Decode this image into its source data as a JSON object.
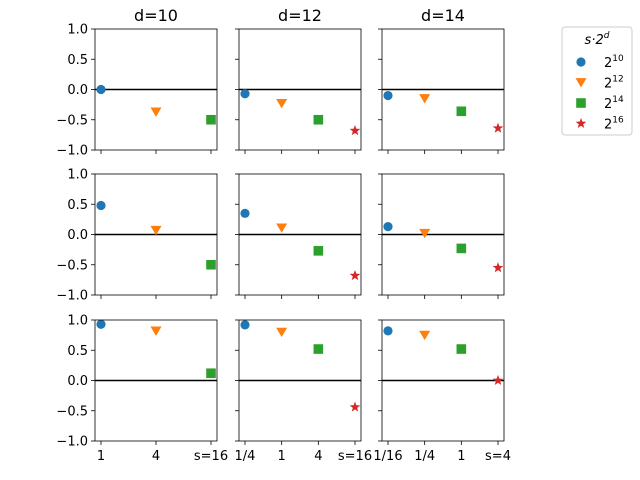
{
  "column_titles": [
    "d=10",
    "d=12",
    "d=14"
  ],
  "legend": {
    "title": "s · 2^d",
    "entries": [
      {
        "label": "2^10",
        "marker": "circle",
        "color": "#1f77b4"
      },
      {
        "label": "2^12",
        "marker": "triangle-down",
        "color": "#ff7f0e"
      },
      {
        "label": "2^14",
        "marker": "square",
        "color": "#2ca02c"
      },
      {
        "label": "2^16",
        "marker": "star",
        "color": "#d62728"
      }
    ],
    "placement": "upper-right outside"
  },
  "chart_data": {
    "type": "scatter",
    "grid": false,
    "ylim": [
      -1.0,
      1.0
    ],
    "yticks": [
      "1.0",
      "0.5",
      "0.0",
      "−0.5",
      "−1.0"
    ],
    "ytick_values": [
      1.0,
      0.5,
      0.0,
      -0.5,
      -1.0
    ],
    "reference_line_y": 0.0,
    "columns": [
      {
        "title": "d=10",
        "x_categories": [
          "1",
          "4",
          "s=16"
        ]
      },
      {
        "title": "d=12",
        "x_categories": [
          "1/4",
          "1",
          "4",
          "s=16"
        ]
      },
      {
        "title": "d=14",
        "x_categories": [
          "1/16",
          "1/4",
          "1",
          "s=4"
        ]
      }
    ],
    "series_names": [
      "2^10",
      "2^12",
      "2^14",
      "2^16"
    ],
    "panels": [
      {
        "row": 0,
        "col": 0,
        "points": [
          {
            "series": 0,
            "x": 0,
            "y": 0.0
          },
          {
            "series": 1,
            "x": 1,
            "y": -0.37
          },
          {
            "series": 2,
            "x": 2,
            "y": -0.5
          }
        ]
      },
      {
        "row": 0,
        "col": 1,
        "points": [
          {
            "series": 0,
            "x": 0,
            "y": -0.07
          },
          {
            "series": 1,
            "x": 1,
            "y": -0.23
          },
          {
            "series": 2,
            "x": 2,
            "y": -0.5
          },
          {
            "series": 3,
            "x": 3,
            "y": -0.68
          }
        ]
      },
      {
        "row": 0,
        "col": 2,
        "points": [
          {
            "series": 0,
            "x": 0,
            "y": -0.1
          },
          {
            "series": 1,
            "x": 1,
            "y": -0.15
          },
          {
            "series": 2,
            "x": 2,
            "y": -0.36
          },
          {
            "series": 3,
            "x": 3,
            "y": -0.64
          }
        ]
      },
      {
        "row": 1,
        "col": 0,
        "points": [
          {
            "series": 0,
            "x": 0,
            "y": 0.48
          },
          {
            "series": 1,
            "x": 1,
            "y": 0.07
          },
          {
            "series": 2,
            "x": 2,
            "y": -0.5
          }
        ]
      },
      {
        "row": 1,
        "col": 1,
        "points": [
          {
            "series": 0,
            "x": 0,
            "y": 0.35
          },
          {
            "series": 1,
            "x": 1,
            "y": 0.11
          },
          {
            "series": 2,
            "x": 2,
            "y": -0.27
          },
          {
            "series": 3,
            "x": 3,
            "y": -0.68
          }
        ]
      },
      {
        "row": 1,
        "col": 2,
        "points": [
          {
            "series": 0,
            "x": 0,
            "y": 0.13
          },
          {
            "series": 1,
            "x": 1,
            "y": 0.02
          },
          {
            "series": 2,
            "x": 2,
            "y": -0.23
          },
          {
            "series": 3,
            "x": 3,
            "y": -0.55
          }
        ]
      },
      {
        "row": 2,
        "col": 0,
        "points": [
          {
            "series": 0,
            "x": 0,
            "y": 0.93
          },
          {
            "series": 1,
            "x": 1,
            "y": 0.82
          },
          {
            "series": 2,
            "x": 2,
            "y": 0.12
          }
        ]
      },
      {
        "row": 2,
        "col": 1,
        "points": [
          {
            "series": 0,
            "x": 0,
            "y": 0.92
          },
          {
            "series": 1,
            "x": 1,
            "y": 0.8
          },
          {
            "series": 2,
            "x": 2,
            "y": 0.52
          },
          {
            "series": 3,
            "x": 3,
            "y": -0.44
          }
        ]
      },
      {
        "row": 2,
        "col": 2,
        "points": [
          {
            "series": 0,
            "x": 0,
            "y": 0.82
          },
          {
            "series": 1,
            "x": 1,
            "y": 0.75
          },
          {
            "series": 2,
            "x": 2,
            "y": 0.52
          },
          {
            "series": 3,
            "x": 3,
            "y": 0.0
          }
        ]
      }
    ]
  }
}
